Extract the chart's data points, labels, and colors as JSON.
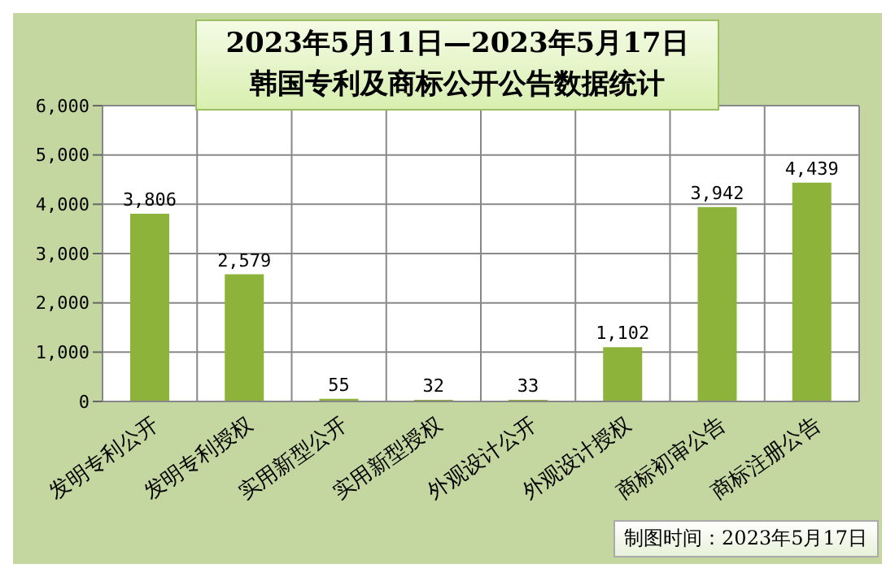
{
  "chart_data": {
    "type": "bar",
    "title": "2023年5月11日—2023年5月17日",
    "subtitle": "韩国专利及商标公开公告数据统计",
    "categories": [
      "发明专利公开",
      "发明专利授权",
      "实用新型公开",
      "实用新型授权",
      "外观设计公开",
      "外观设计授权",
      "商标初审公告",
      "商标注册公告"
    ],
    "values": [
      3806,
      2579,
      55,
      32,
      33,
      1102,
      3942,
      4439
    ],
    "color": "#8db33a",
    "ylim": [
      0,
      6000
    ],
    "yticks": [
      {
        "value": 0,
        "label": "0"
      },
      {
        "value": 1000,
        "label": "1,000"
      },
      {
        "value": 2000,
        "label": "2,000"
      },
      {
        "value": 3000,
        "label": "3,000"
      },
      {
        "value": 4000,
        "label": "4,000"
      },
      {
        "value": 5000,
        "label": "5,000"
      },
      {
        "value": 6000,
        "label": "6,000"
      }
    ],
    "value_labels": [
      "3,806",
      "2,579",
      "55",
      "32",
      "33",
      "1,102",
      "3,942",
      "4,439"
    ],
    "grid": true,
    "annotations": [
      "制图时间：2023年5月17日"
    ]
  }
}
